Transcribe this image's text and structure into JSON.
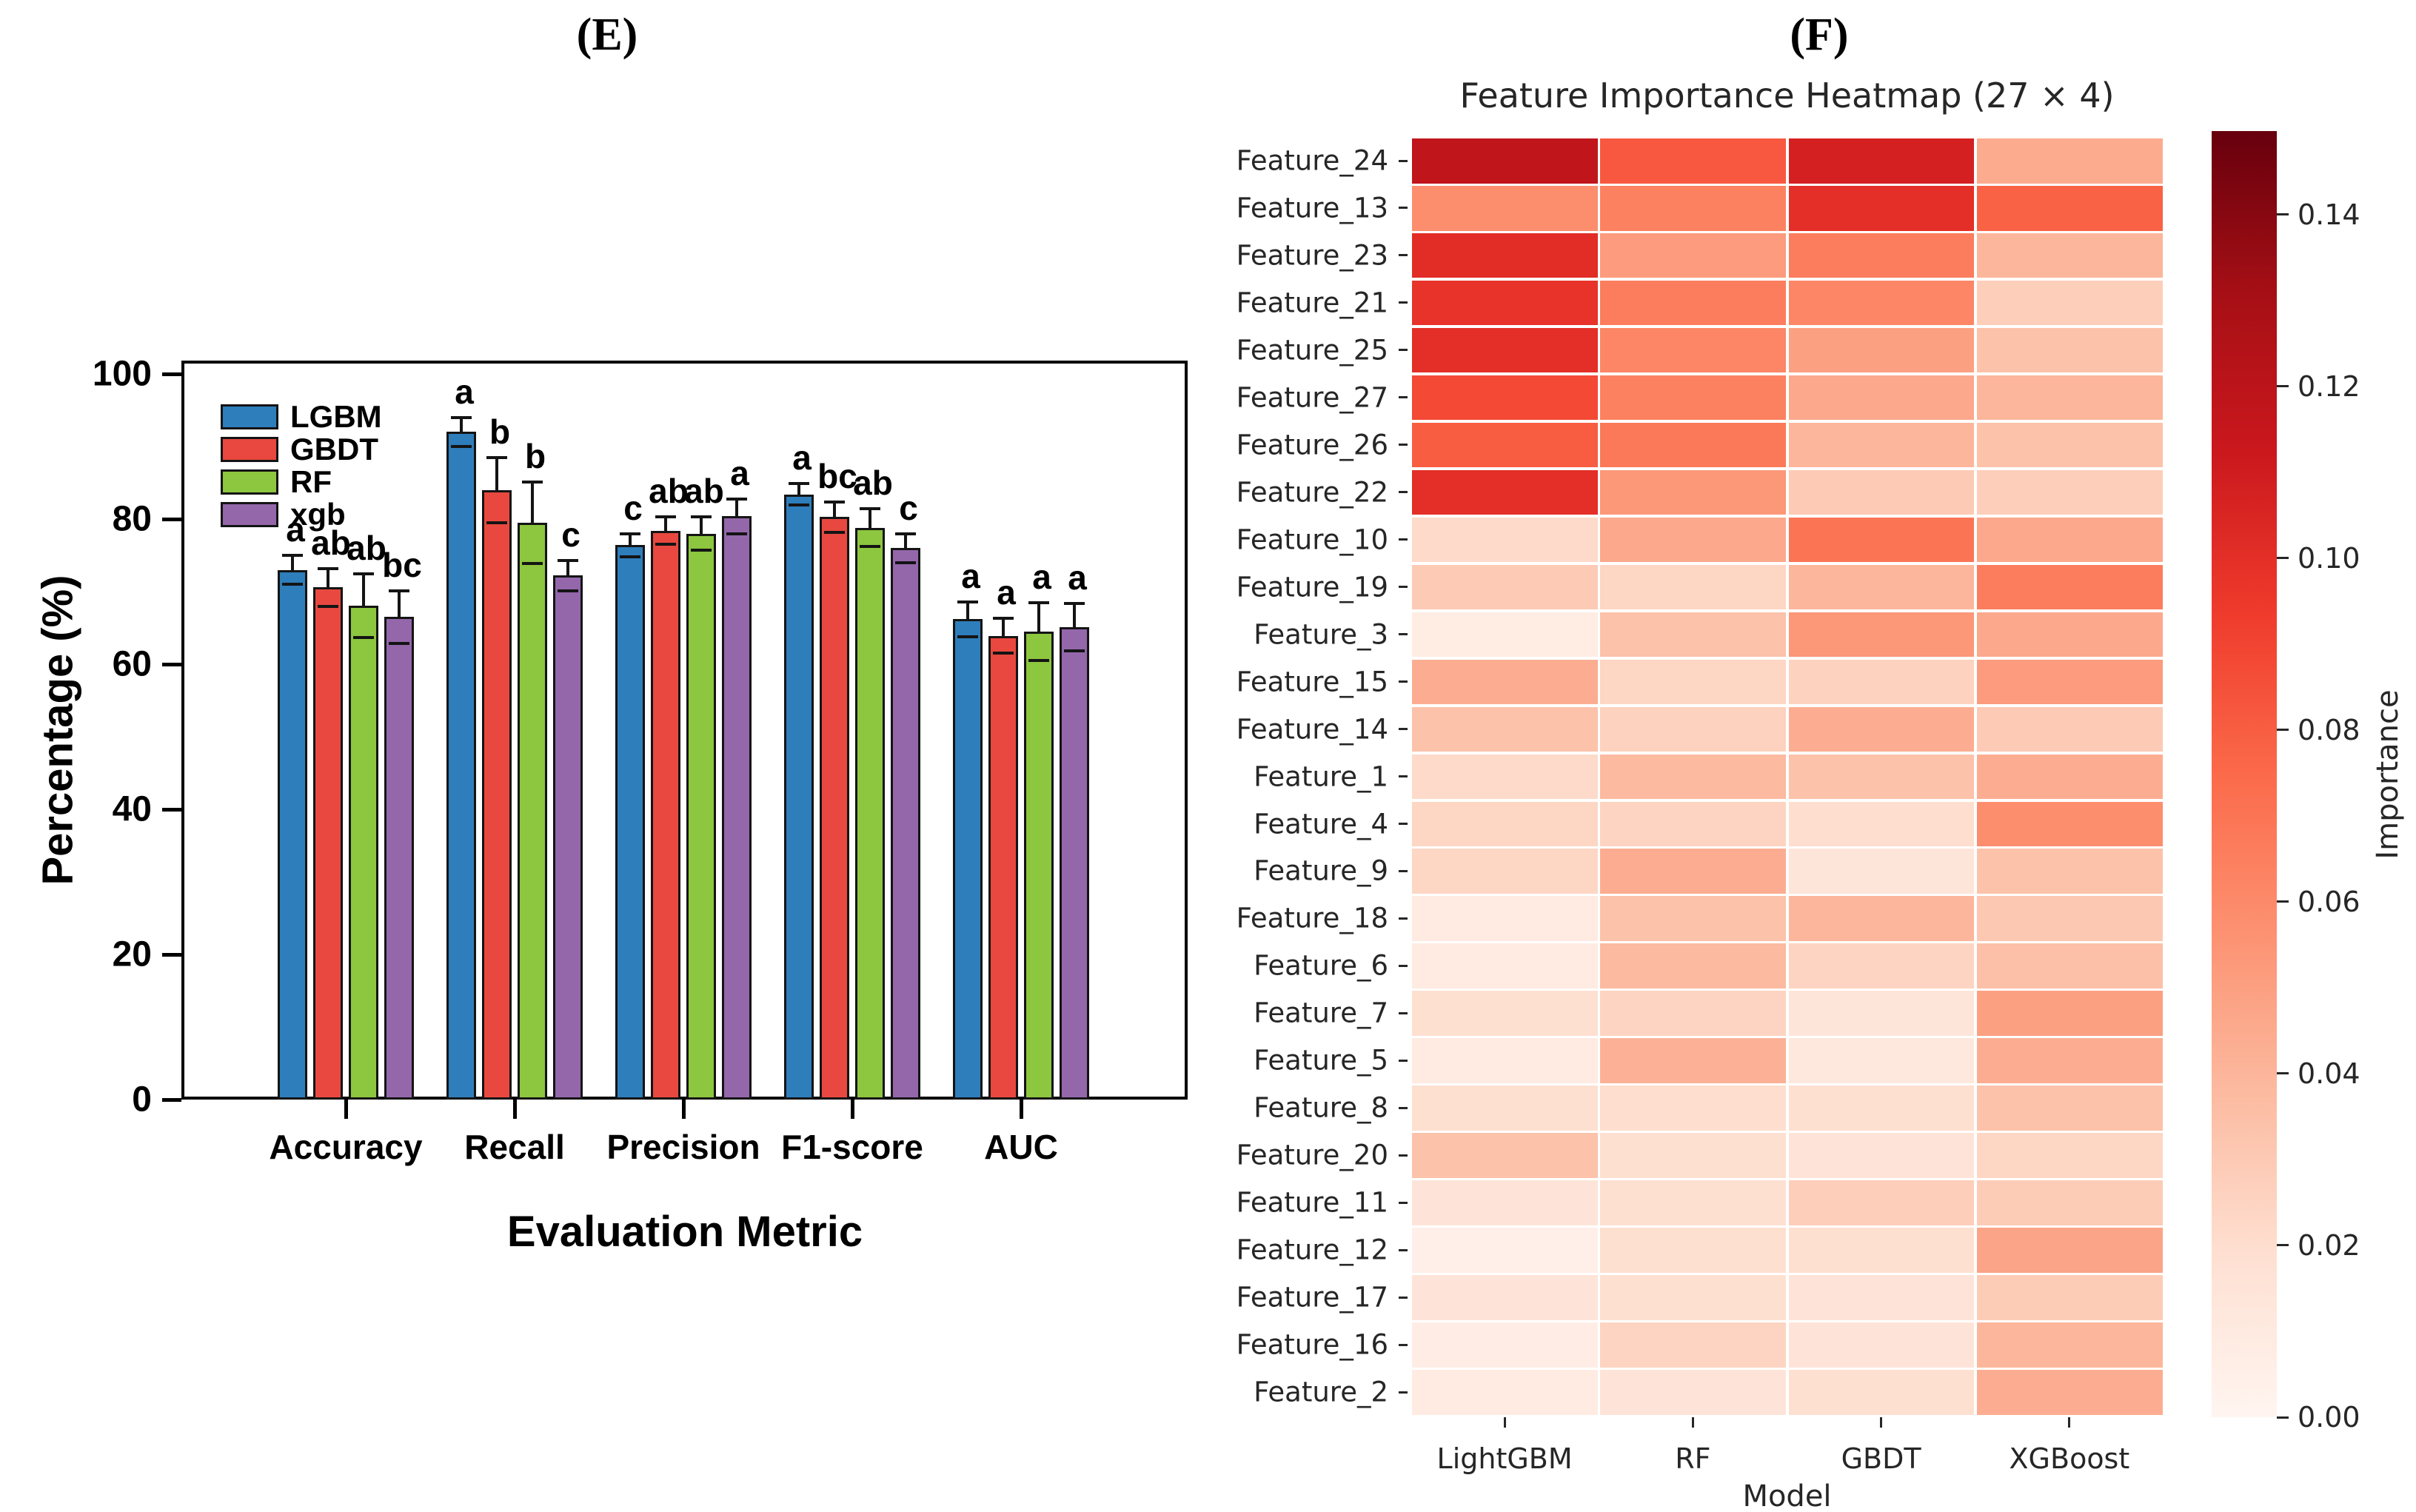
{
  "panels": {
    "left_label": "(E)",
    "right_label": "(F)"
  },
  "accent_colors": {
    "lgbm_blue": "#2e7ebc",
    "gbdt_red": "#e8483f",
    "rf_green": "#8dc63f",
    "xgb_purple": "#9467ab",
    "heatmap_max_red": "#67000d",
    "heatmap_min_red": "#fff5f0"
  },
  "chart_data": [
    {
      "type": "bar",
      "panel": "E",
      "title": "",
      "categories": [
        "Accuracy",
        "Recall",
        "Precision",
        "F1-score",
        "AUC"
      ],
      "series": [
        {
          "name": "LGBM",
          "color": "#2e7ebc",
          "values": [
            73.0,
            92.0,
            76.4,
            83.4,
            66.2
          ],
          "errors": [
            2.0,
            2.0,
            1.6,
            1.5,
            2.4
          ],
          "sig_letters": [
            "a",
            "a",
            "c",
            "a",
            "a"
          ]
        },
        {
          "name": "GBDT",
          "color": "#e8483f",
          "values": [
            70.6,
            84.0,
            78.4,
            80.3,
            63.9
          ],
          "errors": [
            2.6,
            4.5,
            1.9,
            2.1,
            2.4
          ],
          "sig_letters": [
            "ab",
            "b",
            "ab",
            "bc",
            "a"
          ]
        },
        {
          "name": "RF",
          "color": "#8dc63f",
          "values": [
            68.1,
            79.5,
            78.0,
            78.8,
            64.5
          ],
          "errors": [
            4.4,
            5.6,
            2.3,
            2.6,
            4.0
          ],
          "sig_letters": [
            "ab",
            "b",
            "ab",
            "ab",
            "a"
          ]
        },
        {
          "name": "xgb",
          "color": "#9467ab",
          "values": [
            66.5,
            72.2,
            80.4,
            76.0,
            65.1
          ],
          "errors": [
            3.6,
            2.1,
            2.4,
            2.0,
            3.3
          ],
          "sig_letters": [
            "bc",
            "c",
            "a",
            "c",
            "a"
          ]
        }
      ],
      "xlabel": "Evaluation Metric",
      "ylabel": "Percentage (%)",
      "ylim": [
        0,
        100
      ],
      "yticks": [
        0,
        20,
        40,
        60,
        80,
        100
      ],
      "legend_position": "upper left",
      "grid": false
    },
    {
      "type": "heatmap",
      "panel": "F",
      "title": "Feature Importance Heatmap (27 × 4)",
      "xlabel": "Model",
      "columns": [
        "LightGBM",
        "RF",
        "GBDT",
        "XGBoost"
      ],
      "rows": [
        "Feature_24",
        "Feature_13",
        "Feature_23",
        "Feature_21",
        "Feature_25",
        "Feature_27",
        "Feature_26",
        "Feature_22",
        "Feature_10",
        "Feature_19",
        "Feature_3",
        "Feature_15",
        "Feature_14",
        "Feature_1",
        "Feature_4",
        "Feature_9",
        "Feature_18",
        "Feature_6",
        "Feature_7",
        "Feature_5",
        "Feature_8",
        "Feature_20",
        "Feature_11",
        "Feature_12",
        "Feature_17",
        "Feature_16",
        "Feature_2"
      ],
      "values": [
        [
          0.118,
          0.082,
          0.108,
          0.045
        ],
        [
          0.058,
          0.064,
          0.1,
          0.078
        ],
        [
          0.101,
          0.052,
          0.066,
          0.04
        ],
        [
          0.098,
          0.066,
          0.062,
          0.028
        ],
        [
          0.1,
          0.062,
          0.05,
          0.034
        ],
        [
          0.088,
          0.064,
          0.046,
          0.04
        ],
        [
          0.08,
          0.068,
          0.04,
          0.034
        ],
        [
          0.1,
          0.054,
          0.03,
          0.028
        ],
        [
          0.022,
          0.046,
          0.07,
          0.046
        ],
        [
          0.03,
          0.024,
          0.04,
          0.066
        ],
        [
          0.008,
          0.034,
          0.054,
          0.046
        ],
        [
          0.044,
          0.024,
          0.026,
          0.052
        ],
        [
          0.034,
          0.026,
          0.044,
          0.03
        ],
        [
          0.022,
          0.038,
          0.034,
          0.044
        ],
        [
          0.024,
          0.025,
          0.02,
          0.058
        ],
        [
          0.024,
          0.044,
          0.014,
          0.034
        ],
        [
          0.009,
          0.034,
          0.04,
          0.031
        ],
        [
          0.009,
          0.038,
          0.025,
          0.035
        ],
        [
          0.019,
          0.025,
          0.014,
          0.05
        ],
        [
          0.009,
          0.042,
          0.012,
          0.044
        ],
        [
          0.019,
          0.02,
          0.019,
          0.034
        ],
        [
          0.034,
          0.019,
          0.015,
          0.024
        ],
        [
          0.015,
          0.019,
          0.028,
          0.029
        ],
        [
          0.005,
          0.019,
          0.019,
          0.048
        ],
        [
          0.015,
          0.019,
          0.015,
          0.029
        ],
        [
          0.007,
          0.025,
          0.015,
          0.04
        ],
        [
          0.009,
          0.015,
          0.019,
          0.044
        ]
      ],
      "colormap": "Reds",
      "colorbar": {
        "label": "Importance",
        "tick_labels": [
          "0.14",
          "0.12",
          "0.10",
          "0.08",
          "0.06",
          "0.04",
          "0.02",
          "0.00"
        ],
        "tick_values": [
          0.14,
          0.12,
          0.1,
          0.08,
          0.06,
          0.04,
          0.02,
          0.0
        ],
        "vmin": 0.0,
        "vmax": 0.15
      }
    }
  ]
}
